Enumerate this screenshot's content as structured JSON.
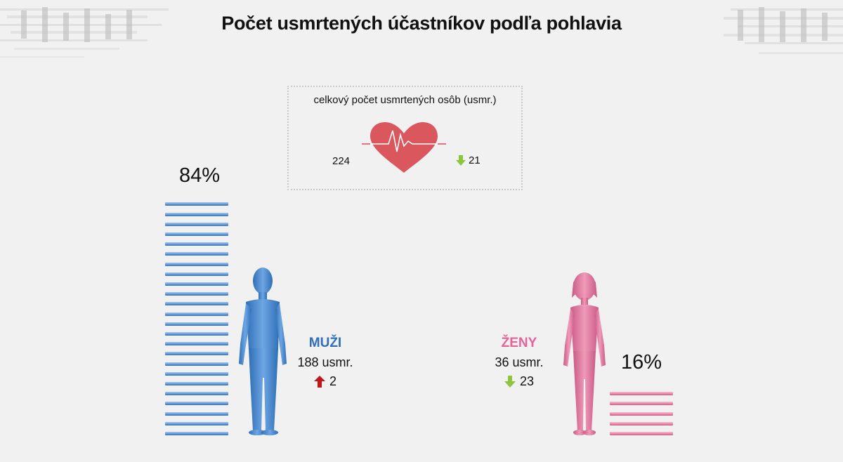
{
  "title": "Počet usmrtených účastníkov podľa pohlavia",
  "total": {
    "label": "celkový počet usmrtených osôb (usmr.)",
    "value": "224",
    "change": "21",
    "change_direction": "down",
    "icon": "heart-pulse-icon",
    "heart_color": "#d9575d"
  },
  "men": {
    "name": "MUŽI",
    "percent_label": "84%",
    "percent": 84,
    "count": "188 usmr.",
    "change": "2",
    "change_direction": "up",
    "color": "#4f8cd0",
    "name_color": "#2f6fb7"
  },
  "women": {
    "name": "ŽENY",
    "percent_label": "16%",
    "percent": 16,
    "count": "36 usmr.",
    "change": "23",
    "change_direction": "down",
    "color": "#e5779e",
    "name_color": "#e4649a"
  },
  "colors": {
    "arrow_up": "#c0171c",
    "arrow_down": "#8cc63f"
  }
}
